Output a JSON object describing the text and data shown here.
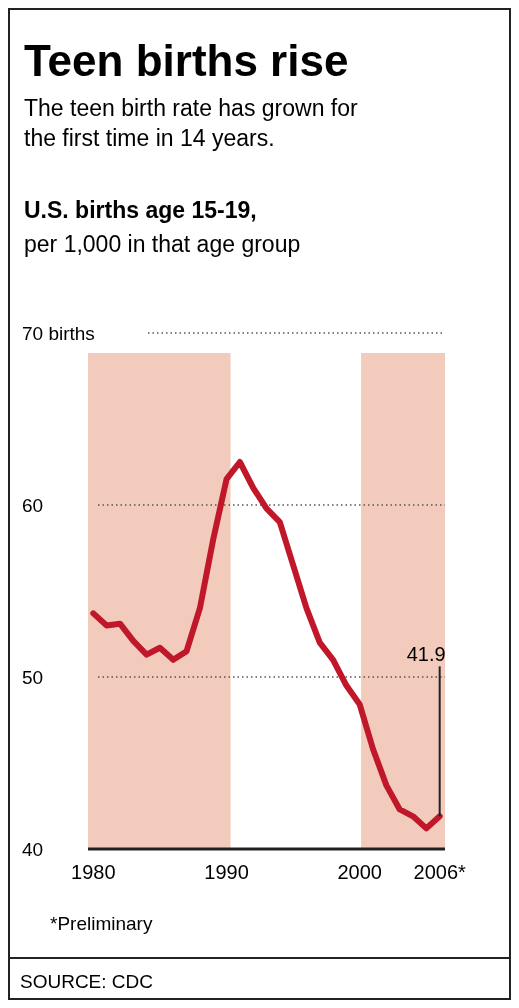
{
  "chart_data": {
    "type": "line",
    "title": "Teen births rise",
    "subtitle": "The teen birth rate has grown for the first time in 14 years.",
    "ylabel": "U.S. births age 15-19, per 1,000 in that age group",
    "x": [
      1980,
      1981,
      1982,
      1983,
      1984,
      1985,
      1986,
      1987,
      1988,
      1989,
      1990,
      1991,
      1992,
      1993,
      1994,
      1995,
      1996,
      1997,
      1998,
      1999,
      2000,
      2001,
      2002,
      2003,
      2004,
      2005,
      2006
    ],
    "series": [
      {
        "color": "#c0182a",
        "values": [
          53.7,
          53.0,
          53.1,
          52.1,
          51.3,
          51.7,
          51.0,
          51.5,
          54.0,
          58.0,
          61.5,
          62.5,
          61.0,
          59.8,
          59.0,
          56.5,
          54.0,
          52.0,
          51.0,
          49.5,
          48.4,
          45.8,
          43.7,
          42.3,
          41.9,
          41.2,
          41.9
        ]
      }
    ],
    "xlim": [
      1979.6,
      2006.4
    ],
    "xticks": [
      1980,
      1990,
      2000,
      {
        "value": 2006,
        "label": "2006*"
      }
    ],
    "ylim": [
      40,
      70
    ],
    "yticks": [
      40,
      50,
      60,
      {
        "value": 70,
        "label": "70 births"
      }
    ],
    "grid": "y",
    "line_style": "solid",
    "marker": "none",
    "bands": [
      {
        "axis": "x",
        "from": 1979.6,
        "to": 1990.3,
        "color": "#f2cbbd"
      },
      {
        "axis": "x",
        "from": 2000.1,
        "to": 2006.4,
        "color": "#f2cbbd"
      }
    ],
    "annotations": [
      {
        "text": "41.9",
        "x": 2006,
        "y": 41.9
      },
      "*Preliminary",
      "SOURCE: CDC"
    ]
  }
}
